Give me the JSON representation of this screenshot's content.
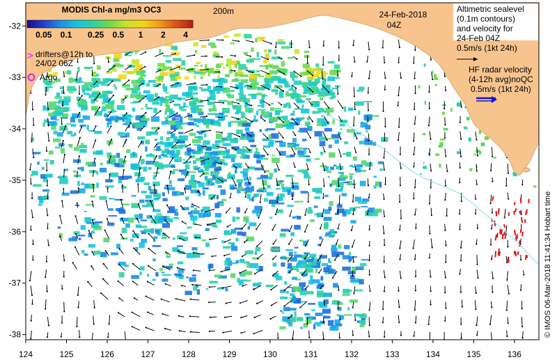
{
  "colorbar": {
    "title": "MODIS Chl-a mg/m3 OC3",
    "ticks": [
      "0.05",
      "0.1",
      "0.25",
      "0.5",
      "1",
      "2",
      "4"
    ],
    "tick_values": [
      0.05,
      0.1,
      0.25,
      0.5,
      1,
      2,
      4
    ],
    "range": [
      0.03,
      5
    ],
    "colors": [
      "#1a0a8c",
      "#1f3fd0",
      "#1c8ce6",
      "#14c4e0",
      "#2ed1a4",
      "#6edb4a",
      "#c8e428",
      "#f5d51a",
      "#f29a12",
      "#e0501a",
      "#b01e14"
    ]
  },
  "isobath_label": "200m",
  "date": {
    "day": "24-Feb-2018",
    "time": "04Z"
  },
  "altimetry_legend": {
    "line1": "Altimetric sealevel",
    "line2": "(0.1m contours)",
    "line3": "and velocity for",
    "line4": "24-Feb 04Z",
    "line5": "0.5m/s (1kt 24h)"
  },
  "hf_radar_legend": {
    "line1": "HF radar velocity",
    "line2": "(4-12h avg)noQC",
    "line3": "0.5m/s (1kt 24h)"
  },
  "drifters_legend": {
    "line1": "drifters@12h to",
    "line2": "24/02 06Z"
  },
  "argo_legend": {
    "label": "Argo"
  },
  "credit": "© IMOS 06-Mar-2018 11:41:34 Hobart time",
  "axes": {
    "x_ticks": [
      "124",
      "125",
      "126",
      "127",
      "128",
      "129",
      "130",
      "131",
      "132",
      "133",
      "134",
      "135",
      "136"
    ],
    "x_values": [
      124,
      125,
      126,
      127,
      128,
      129,
      130,
      131,
      132,
      133,
      134,
      135,
      136
    ],
    "y_ticks": [
      "-32",
      "-33",
      "-34",
      "-35",
      "-36",
      "-37",
      "-38"
    ],
    "y_values": [
      -32,
      -33,
      -34,
      -35,
      -36,
      -37,
      -38
    ],
    "xlim": [
      124,
      136.6
    ],
    "ylim": [
      -38.1,
      -31.55
    ]
  },
  "colors": {
    "land": "#f7c48e",
    "coast": "#c8a070",
    "isobath": "#7fe0e8",
    "vectors": "#000000",
    "hf_radar": "#e01010",
    "drifter": "#ff2cff",
    "argo": "#e020e0",
    "hf_legend_arrow": "#1010e0"
  }
}
